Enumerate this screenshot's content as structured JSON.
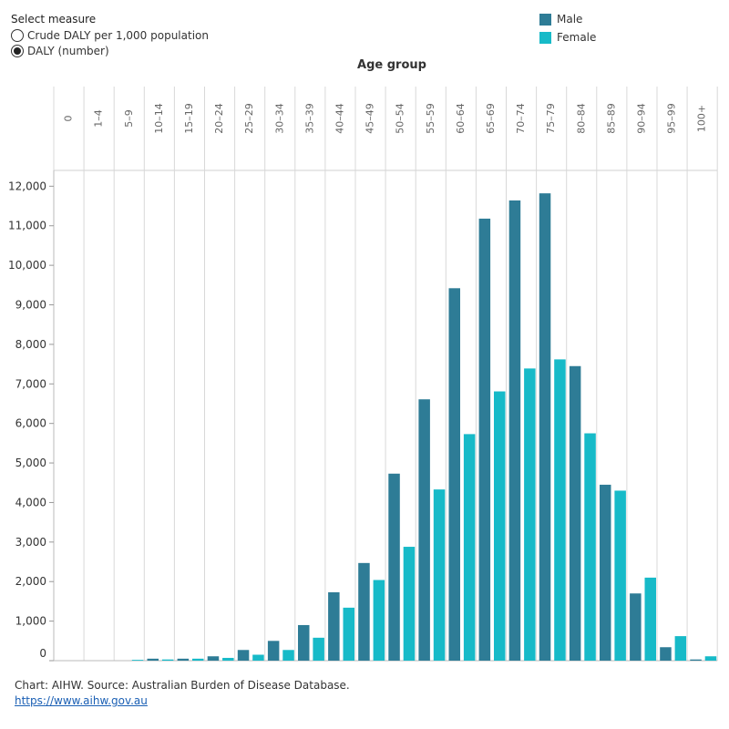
{
  "controls": {
    "title": "Select measure",
    "options": [
      {
        "label": "Crude DALY per 1,000 population",
        "selected": false
      },
      {
        "label": "DALY (number)",
        "selected": true
      }
    ]
  },
  "legend": {
    "items": [
      {
        "label": "Male",
        "color": "#2e7c96"
      },
      {
        "label": "Female",
        "color": "#17bac8"
      }
    ]
  },
  "footer": {
    "source": "Chart: AIHW.  Source: Australian Burden of Disease Database.",
    "link": "https://www.aihw.gov.au"
  },
  "chart_data": {
    "type": "bar",
    "title": "",
    "xlabel": "Age group",
    "ylabel": "",
    "ylim": [
      0,
      12400
    ],
    "yticks": [
      0,
      1000,
      2000,
      3000,
      4000,
      5000,
      6000,
      7000,
      8000,
      9000,
      10000,
      11000,
      12000
    ],
    "ytick_labels": [
      "0",
      "1,000",
      "2,000",
      "3,000",
      "4,000",
      "5,000",
      "6,000",
      "7,000",
      "8,000",
      "9,000",
      "10,000",
      "11,000",
      "12,000"
    ],
    "grid": "vertical",
    "legend_position": "top-right",
    "categories": [
      "0",
      "1–4",
      "5–9",
      "10–14",
      "15–19",
      "20–24",
      "25–29",
      "30–34",
      "35–39",
      "40–44",
      "45–49",
      "50–54",
      "55–59",
      "60–64",
      "65–69",
      "70–74",
      "75–79",
      "80–84",
      "85–89",
      "90–94",
      "95–99",
      "100+"
    ],
    "series": [
      {
        "name": "Male",
        "color": "#2e7c96",
        "values": [
          0,
          0,
          0,
          50,
          50,
          110,
          270,
          500,
          900,
          1730,
          2470,
          4730,
          6610,
          9420,
          11180,
          11640,
          11820,
          7450,
          4450,
          1700,
          340,
          30
        ]
      },
      {
        "name": "Female",
        "color": "#17bac8",
        "values": [
          0,
          0,
          20,
          30,
          50,
          70,
          150,
          270,
          580,
          1340,
          2040,
          2880,
          4330,
          5730,
          6810,
          7390,
          7620,
          5750,
          4300,
          2100,
          620,
          110
        ]
      }
    ]
  }
}
